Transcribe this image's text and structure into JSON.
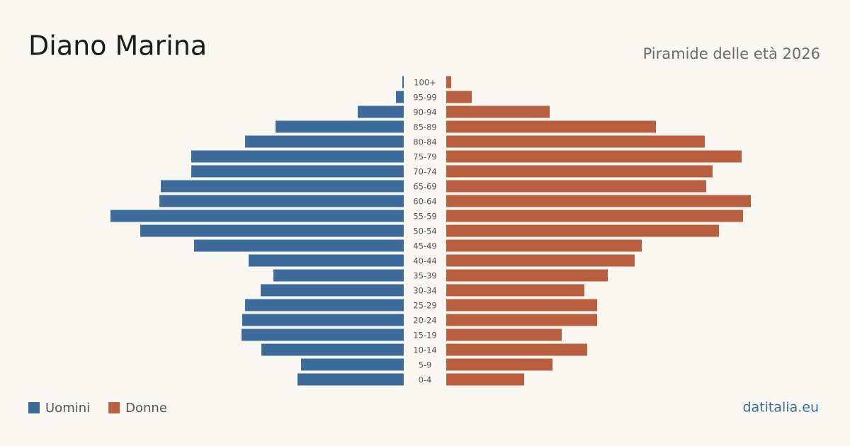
{
  "chart_data": {
    "type": "pyramid",
    "title": "Diano Marina",
    "subtitle": "Piramide delle età 2026",
    "source": "datitalia.eu",
    "categories": [
      "100+",
      "95-99",
      "90-94",
      "85-89",
      "80-84",
      "75-79",
      "70-74",
      "65-69",
      "60-64",
      "55-59",
      "50-54",
      "45-49",
      "40-44",
      "35-39",
      "30-34",
      "25-29",
      "20-24",
      "15-19",
      "10-14",
      "5-9",
      "0-4"
    ],
    "series": [
      {
        "name": "Uomini",
        "color": "#3d6b9b",
        "values": [
          2,
          11,
          65,
          181,
          224,
          300,
          300,
          343,
          345,
          414,
          372,
          296,
          219,
          184,
          202,
          224,
          228,
          229,
          201,
          145,
          150
        ]
      },
      {
        "name": "Donne",
        "color": "#b95e3e",
        "values": [
          7,
          36,
          146,
          296,
          365,
          417,
          376,
          367,
          430,
          419,
          385,
          276,
          266,
          228,
          195,
          213,
          213,
          163,
          199,
          150,
          110
        ]
      }
    ]
  }
}
